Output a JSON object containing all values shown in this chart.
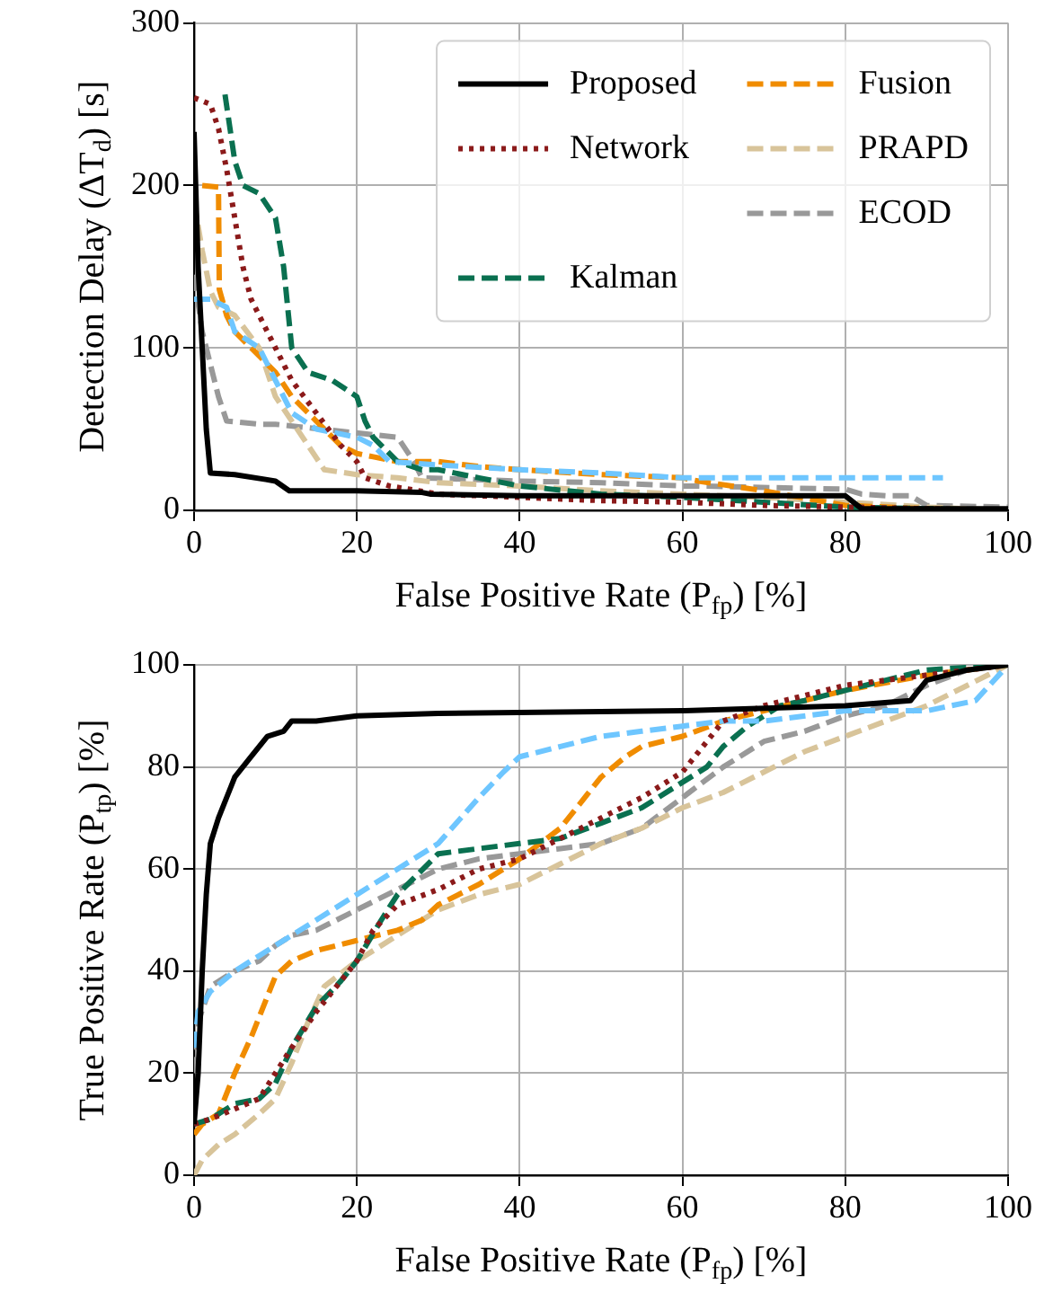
{
  "chart_data": [
    {
      "type": "line",
      "xlabel": "False Positive Rate (P$_{fp}$) [%]",
      "ylabel": "Detection Delay (ΔT$_{d}$) [s]",
      "xlim": [
        0,
        100
      ],
      "xticks": [
        0,
        20,
        40,
        60,
        80,
        100
      ],
      "ylim": [
        0,
        300
      ],
      "yticks": [
        0,
        100,
        200,
        300
      ],
      "grid": true,
      "legend": "top right",
      "marker": "none",
      "series": [
        {
          "name": "Proposed",
          "color": "#000000",
          "line_style": "solid",
          "x": [
            0,
            0.5,
            1,
            1.5,
            2,
            5,
            8.8,
            10,
            11.7,
            20,
            28,
            29,
            40,
            60,
            80,
            82,
            100
          ],
          "values": [
            233,
            150,
            100,
            50,
            23,
            22,
            19,
            18,
            12,
            12,
            11,
            10,
            9,
            9,
            9,
            1,
            1
          ]
        },
        {
          "name": "Network",
          "color": "#8b1a1a",
          "line_style": "dotted",
          "x": [
            0,
            2,
            3,
            4,
            5,
            6,
            7,
            9,
            12,
            15,
            18,
            20,
            21,
            24,
            30,
            40,
            50,
            60,
            70,
            80,
            90,
            100
          ],
          "values": [
            254,
            250,
            235,
            210,
            180,
            150,
            130,
            110,
            80,
            60,
            40,
            30,
            20,
            15,
            10,
            8,
            6,
            5,
            3,
            2,
            1,
            0
          ]
        },
        {
          "name": null,
          "color": "#6ec6ff",
          "line_style": "dashed",
          "x": [
            0,
            2,
            4,
            5,
            8,
            10,
            12,
            15,
            20,
            22,
            24,
            30,
            40,
            50,
            60,
            92
          ],
          "values": [
            130,
            130,
            125,
            110,
            100,
            80,
            60,
            50,
            45,
            40,
            30,
            28,
            25,
            23,
            20,
            20
          ]
        },
        {
          "name": "Kalman",
          "color": "#0a7050",
          "line_style": "dashed",
          "x": [
            3.8,
            5,
            6,
            8,
            10,
            11,
            12,
            14,
            17,
            20,
            21,
            22,
            25,
            28,
            30,
            35,
            40,
            50,
            60,
            70,
            80,
            100
          ],
          "values": [
            256,
            215,
            200,
            195,
            180,
            150,
            100,
            85,
            80,
            70,
            55,
            45,
            30,
            25,
            25,
            20,
            15,
            10,
            8,
            5,
            2,
            0
          ]
        },
        {
          "name": "Fusion",
          "color": "#f08c00",
          "line_style": "dashed",
          "x": [
            1,
            3,
            3.1,
            4,
            5,
            8,
            10,
            12,
            15,
            18,
            20,
            22,
            25,
            30,
            35,
            40,
            50,
            60,
            62,
            70,
            80,
            90,
            100
          ],
          "values": [
            200,
            199,
            136,
            120,
            110,
            95,
            85,
            70,
            55,
            40,
            35,
            33,
            30,
            30,
            27,
            25,
            22,
            20,
            18,
            12,
            3,
            1,
            0
          ]
        },
        {
          "name": "PRAPD",
          "color": "#d8c49a",
          "line_style": "dashed",
          "x": [
            0,
            1,
            2,
            3,
            5,
            8,
            10,
            12,
            14,
            16,
            20,
            25,
            30,
            40,
            50,
            60,
            70,
            80,
            90,
            100
          ],
          "values": [
            190,
            160,
            135,
            125,
            120,
            100,
            70,
            55,
            40,
            25,
            22,
            20,
            17,
            15,
            12,
            10,
            8,
            5,
            2,
            0
          ]
        },
        {
          "name": "ECOD",
          "color": "#999999",
          "line_style": "dashed",
          "x": [
            0,
            1,
            2,
            3,
            4,
            8,
            10,
            25,
            27,
            28,
            40,
            50,
            60,
            62,
            80,
            82,
            85,
            88,
            90,
            100
          ],
          "values": [
            145,
            110,
            90,
            70,
            55,
            53,
            53,
            45,
            30,
            20,
            18,
            17,
            15,
            15,
            13,
            10,
            9,
            9,
            3,
            2
          ]
        }
      ]
    },
    {
      "type": "line",
      "xlabel": "False Positive Rate (P$_{fp}$) [%]",
      "ylabel": "True Positive Rate (P$_{tp}$) [%]",
      "xlim": [
        0,
        100
      ],
      "xticks": [
        0,
        20,
        40,
        60,
        80,
        100
      ],
      "ylim": [
        0,
        100
      ],
      "yticks": [
        0,
        20,
        40,
        60,
        80,
        100
      ],
      "grid": true,
      "marker": "none",
      "series": [
        {
          "color": "#000000",
          "line_style": "solid",
          "x": [
            0,
            0.5,
            1,
            1.5,
            2,
            3,
            5,
            7,
            9,
            11,
            12,
            15,
            20,
            30,
            60,
            80,
            88,
            90,
            95,
            100
          ],
          "values": [
            10,
            20,
            40,
            55,
            65,
            70,
            78,
            82,
            86,
            87,
            89,
            89,
            90,
            90.5,
            91,
            92,
            93,
            97,
            99,
            100
          ]
        },
        {
          "color": "#8b1a1a",
          "line_style": "dotted",
          "x": [
            0,
            2,
            5,
            8,
            10,
            12,
            15,
            18,
            20,
            22,
            25,
            30,
            35,
            40,
            45,
            50,
            55,
            60,
            63,
            65,
            70,
            75,
            80,
            90,
            100
          ],
          "values": [
            10,
            11,
            13,
            15,
            20,
            25,
            32,
            38,
            42,
            48,
            53,
            56,
            60,
            62,
            66,
            70,
            74,
            79,
            85,
            89,
            92,
            94,
            96,
            98,
            100
          ]
        },
        {
          "color": "#6ec6ff",
          "line_style": "dashed",
          "x": [
            0,
            0.5,
            2,
            5,
            8,
            10,
            15,
            20,
            25,
            30,
            35,
            38,
            40,
            45,
            50,
            55,
            60,
            65,
            70,
            80,
            90,
            93,
            96,
            100
          ],
          "values": [
            25,
            32,
            36,
            40,
            43,
            45,
            50,
            55,
            60,
            65,
            74,
            79,
            82,
            84,
            86,
            87,
            88,
            89,
            89,
            91,
            91,
            92,
            93,
            100
          ]
        },
        {
          "color": "#0a7050",
          "line_style": "dashed",
          "x": [
            0,
            2,
            5,
            8,
            10,
            12,
            15,
            18,
            20,
            23,
            25,
            30,
            35,
            40,
            45,
            50,
            55,
            60,
            63,
            65,
            68,
            72,
            75,
            80,
            90,
            100
          ],
          "values": [
            10,
            11,
            14,
            15,
            18,
            25,
            33,
            38,
            42,
            50,
            55,
            63,
            64,
            65,
            66,
            69,
            72,
            77,
            80,
            84,
            88,
            92,
            93,
            95,
            99,
            100
          ]
        },
        {
          "color": "#f08c00",
          "line_style": "dashed",
          "x": [
            0,
            1,
            3,
            5,
            7,
            9,
            10,
            12,
            15,
            20,
            25,
            28,
            30,
            35,
            40,
            45,
            50,
            53,
            55,
            60,
            65,
            70,
            75,
            80,
            90,
            100
          ],
          "values": [
            8,
            10,
            12,
            20,
            27,
            35,
            39,
            42,
            44,
            46,
            48,
            50,
            53,
            57,
            62,
            68,
            78,
            82,
            84,
            86,
            89,
            91,
            93,
            95,
            98,
            100
          ]
        },
        {
          "color": "#d8c49a",
          "line_style": "dashed",
          "x": [
            0,
            1,
            3,
            5,
            8,
            10,
            12,
            14,
            16,
            20,
            25,
            30,
            35,
            40,
            45,
            50,
            55,
            60,
            65,
            70,
            75,
            80,
            85,
            90,
            95,
            100
          ],
          "values": [
            0,
            3,
            6,
            8,
            12,
            15,
            22,
            30,
            37,
            42,
            47,
            52,
            55,
            57,
            61,
            65,
            68,
            72,
            75,
            79,
            83,
            86,
            89,
            92,
            96,
            100
          ]
        },
        {
          "color": "#999999",
          "line_style": "dashed",
          "x": [
            0,
            0.5,
            2,
            5,
            8,
            10,
            12,
            15,
            20,
            25,
            30,
            35,
            40,
            45,
            50,
            55,
            60,
            65,
            70,
            75,
            80,
            85,
            90,
            95,
            100
          ],
          "values": [
            20,
            30,
            37,
            40,
            42,
            45,
            47,
            48,
            52,
            56,
            60,
            62,
            63,
            64,
            65,
            68,
            74,
            80,
            85,
            87,
            90,
            92,
            96,
            99,
            100
          ]
        }
      ]
    }
  ]
}
